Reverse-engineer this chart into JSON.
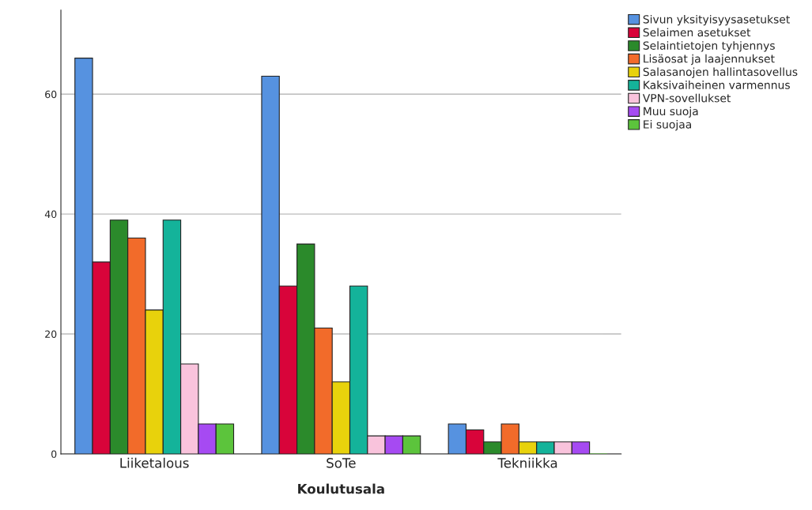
{
  "chart_data": {
    "type": "bar",
    "xlabel": "Koulutusala",
    "categories": [
      "Liiketalous",
      "SoTe",
      "Tekniikka"
    ],
    "series": [
      {
        "name": "Sivun yksityisyysasetukset",
        "color": "#5692e0",
        "values": [
          66,
          63,
          5
        ]
      },
      {
        "name": "Selaimen asetukset",
        "color": "#d8043a",
        "values": [
          32,
          28,
          4
        ]
      },
      {
        "name": "Selaintietojen tyhjennys",
        "color": "#2b8a2b",
        "values": [
          39,
          35,
          2
        ]
      },
      {
        "name": "Lisäosat ja laajennukset",
        "color": "#f26b2a",
        "values": [
          36,
          21,
          5
        ]
      },
      {
        "name": "Salasanojen hallintasovellus",
        "color": "#e8d20c",
        "values": [
          24,
          12,
          2
        ]
      },
      {
        "name": "Kaksivaiheinen varmennus",
        "color": "#14b39a",
        "values": [
          39,
          28,
          2
        ]
      },
      {
        "name": "VPN-sovellukset",
        "color": "#f9c3dc",
        "values": [
          15,
          3,
          2
        ]
      },
      {
        "name": "Muu suoja",
        "color": "#a64af2",
        "values": [
          5,
          3,
          2
        ]
      },
      {
        "name": "Ei suojaa",
        "color": "#5cc43c",
        "values": [
          5,
          3,
          0
        ]
      }
    ],
    "ylim": [
      0,
      74
    ],
    "yticks": [
      0,
      20,
      40,
      60
    ],
    "grid": "y",
    "legend": "top right"
  }
}
